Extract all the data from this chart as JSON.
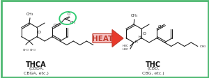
{
  "bg_color": "#ffffff",
  "border_color": "#4db870",
  "border_linewidth": 2.0,
  "arrow_fill_color": "#e8392a",
  "arrow_edge_color": "#c0392b",
  "arrow_label": "HEAT",
  "arrow_label_color": "#c0392b",
  "arrow_box_facecolor": "#f5c0c0",
  "arrow_box_edgecolor": "#c0392b",
  "thca_label": "THCA",
  "thca_sub": "(CBDA,\nCBGA, etc.)",
  "thc_label": "THC",
  "thc_sub": "(CBD,\nCBG, etc.)",
  "label_color": "#111111",
  "sub_color": "#333333",
  "sc": "#1a1a1a",
  "circle_color": "#2ecc71",
  "title_fontsize": 7,
  "sub_fontsize": 4.5,
  "heat_fontsize": 7.5,
  "lw": 0.75
}
